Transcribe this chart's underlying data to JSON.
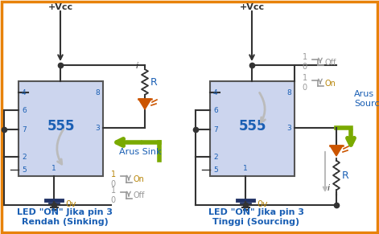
{
  "bg_color": "#ffffff",
  "border_color": "#e8820a",
  "chip_fill": "#ccd5ee",
  "chip_edge": "#555555",
  "wire_color": "#333333",
  "text_color_blue": "#1a5fb4",
  "text_color_orange": "#b8860b",
  "text_color_gray": "#999999",
  "arrow_green": "#7aaa00",
  "led_color": "#cc5500",
  "title1": "LED \"ON\" Jika pin 3",
  "title2_1": "Rendah (Sinking)",
  "title2_2": "Tinggi (Sourcing)",
  "arus_sink": "Arus Sink",
  "arus_source": "Arus\nSource",
  "label_0v": "0v",
  "label_vcc": "+Vcc",
  "label_R": "R",
  "label_i": "i"
}
